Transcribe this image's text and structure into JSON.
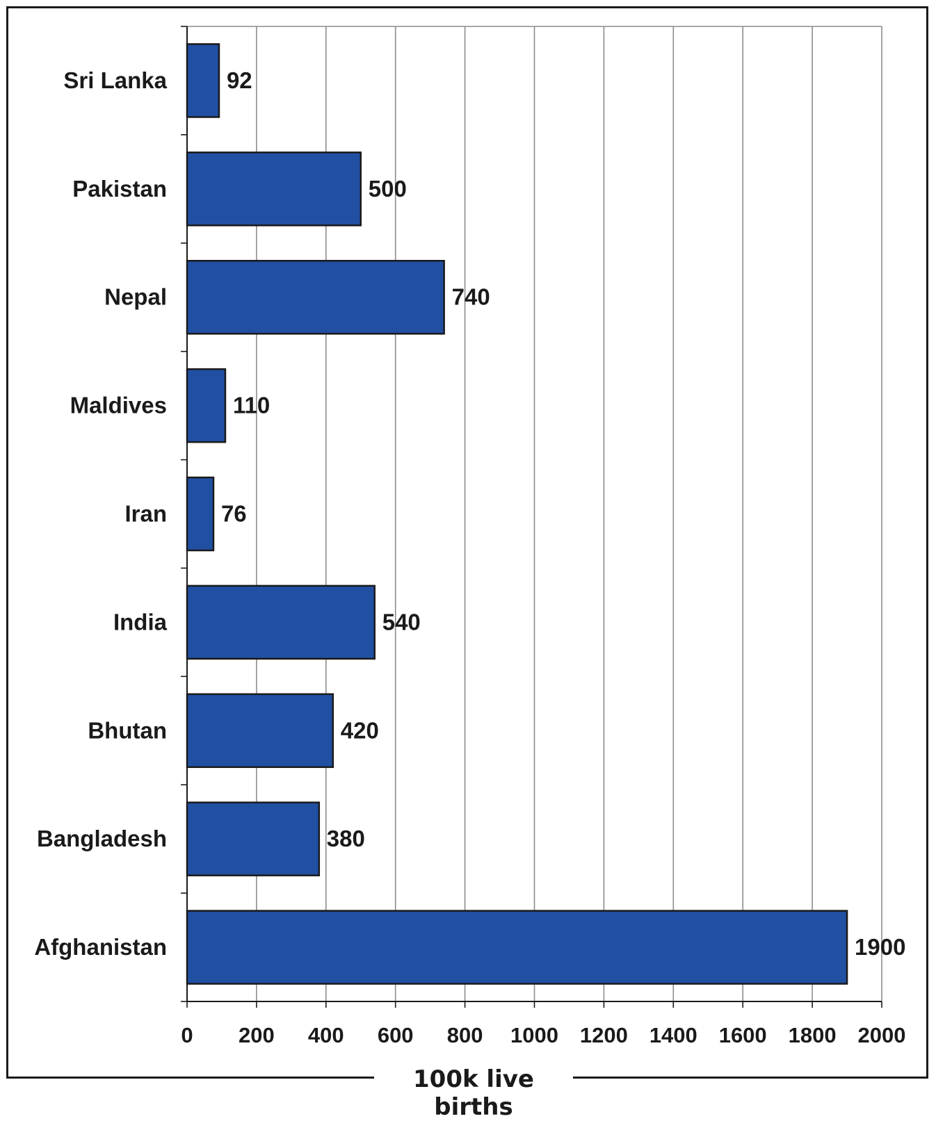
{
  "chart_data": {
    "type": "bar",
    "orientation": "horizontal",
    "categories": [
      "Sri Lanka",
      "Pakistan",
      "Nepal",
      "Maldives",
      "Iran",
      "India",
      "Bhutan",
      "Bangladesh",
      "Afghanistan"
    ],
    "values": [
      92,
      500,
      740,
      110,
      76,
      540,
      420,
      380,
      1900
    ],
    "data_labels": [
      "92",
      "500",
      "740",
      "110",
      "76",
      "540",
      "420",
      "380",
      "1900"
    ],
    "xlabel": "100k live births",
    "ylabel": "",
    "title": "",
    "xlim": [
      0,
      2000
    ],
    "xticks": [
      "0",
      "200",
      "400",
      "600",
      "800",
      "1000",
      "1200",
      "1400",
      "1600",
      "1800",
      "2000"
    ],
    "grid": "vertical",
    "bar_color": "#2150a2",
    "legend": "none"
  }
}
